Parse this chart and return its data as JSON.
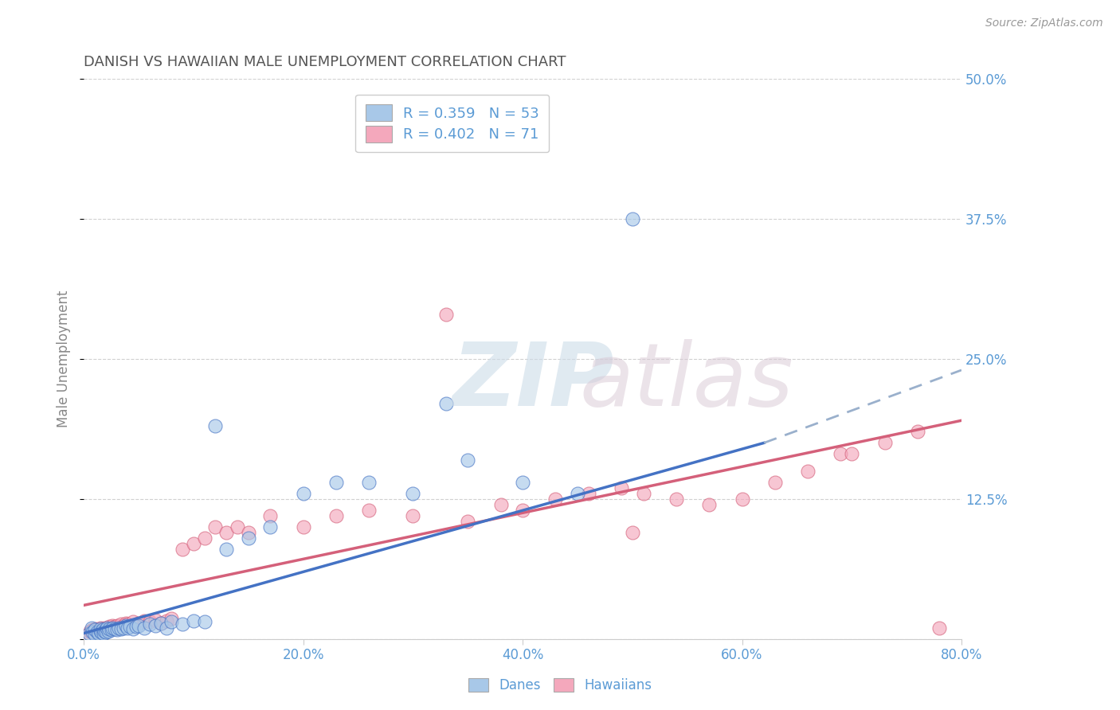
{
  "title": "DANISH VS HAWAIIAN MALE UNEMPLOYMENT CORRELATION CHART",
  "source": "Source: ZipAtlas.com",
  "ylabel": "Male Unemployment",
  "xlim": [
    0,
    0.8
  ],
  "ylim": [
    0,
    0.5
  ],
  "xticks": [
    0.0,
    0.2,
    0.4,
    0.6,
    0.8
  ],
  "xticklabels": [
    "0.0%",
    "20.0%",
    "40.0%",
    "60.0%",
    "80.0%"
  ],
  "yticks": [
    0.0,
    0.125,
    0.25,
    0.375,
    0.5
  ],
  "yticklabels": [
    "",
    "12.5%",
    "25.0%",
    "37.5%",
    "50.0%"
  ],
  "legend_r1": "R = 0.359   N = 53",
  "legend_r2": "R = 0.402   N = 71",
  "danes_color": "#a8c8e8",
  "hawaiians_color": "#f4a8bc",
  "danes_line_color": "#4472c4",
  "danes_line_color_ext": "#9ab0d0",
  "hawaiians_line_color": "#d4607a",
  "background_color": "#ffffff",
  "grid_color": "#cccccc",
  "tick_color": "#5b9bd5",
  "danes_trend_x0": 0.0,
  "danes_trend_y0": 0.005,
  "danes_trend_x1": 0.62,
  "danes_trend_y1": 0.175,
  "danes_trend_ext_x1": 0.8,
  "danes_trend_ext_y1": 0.24,
  "hawaiians_trend_x0": 0.0,
  "hawaiians_trend_y0": 0.03,
  "hawaiians_trend_x1": 0.8,
  "hawaiians_trend_y1": 0.195,
  "danes_x": [
    0.005,
    0.007,
    0.008,
    0.01,
    0.01,
    0.012,
    0.014,
    0.015,
    0.015,
    0.016,
    0.017,
    0.018,
    0.019,
    0.02,
    0.02,
    0.021,
    0.022,
    0.023,
    0.025,
    0.026,
    0.028,
    0.03,
    0.032,
    0.034,
    0.036,
    0.038,
    0.04,
    0.042,
    0.045,
    0.048,
    0.05,
    0.055,
    0.06,
    0.065,
    0.07,
    0.075,
    0.08,
    0.09,
    0.1,
    0.11,
    0.12,
    0.13,
    0.15,
    0.17,
    0.2,
    0.23,
    0.26,
    0.3,
    0.35,
    0.4,
    0.45,
    0.5,
    0.33
  ],
  "danes_y": [
    0.005,
    0.01,
    0.006,
    0.004,
    0.008,
    0.006,
    0.005,
    0.007,
    0.009,
    0.006,
    0.008,
    0.005,
    0.007,
    0.008,
    0.006,
    0.01,
    0.007,
    0.009,
    0.008,
    0.01,
    0.009,
    0.008,
    0.01,
    0.009,
    0.01,
    0.012,
    0.01,
    0.011,
    0.009,
    0.011,
    0.012,
    0.01,
    0.013,
    0.012,
    0.014,
    0.01,
    0.015,
    0.013,
    0.016,
    0.015,
    0.19,
    0.08,
    0.09,
    0.1,
    0.13,
    0.14,
    0.14,
    0.13,
    0.16,
    0.14,
    0.13,
    0.375,
    0.21
  ],
  "hawaiians_x": [
    0.005,
    0.006,
    0.007,
    0.008,
    0.009,
    0.01,
    0.01,
    0.011,
    0.012,
    0.013,
    0.014,
    0.015,
    0.015,
    0.016,
    0.017,
    0.018,
    0.019,
    0.02,
    0.021,
    0.022,
    0.023,
    0.024,
    0.025,
    0.026,
    0.027,
    0.028,
    0.03,
    0.032,
    0.034,
    0.036,
    0.038,
    0.04,
    0.045,
    0.05,
    0.055,
    0.06,
    0.065,
    0.07,
    0.075,
    0.08,
    0.09,
    0.1,
    0.11,
    0.12,
    0.13,
    0.14,
    0.15,
    0.17,
    0.2,
    0.23,
    0.26,
    0.3,
    0.35,
    0.38,
    0.4,
    0.43,
    0.46,
    0.49,
    0.51,
    0.54,
    0.57,
    0.6,
    0.63,
    0.66,
    0.69,
    0.7,
    0.73,
    0.76,
    0.33,
    0.5,
    0.78
  ],
  "hawaiians_y": [
    0.005,
    0.007,
    0.006,
    0.008,
    0.006,
    0.007,
    0.009,
    0.006,
    0.008,
    0.007,
    0.008,
    0.005,
    0.01,
    0.007,
    0.009,
    0.008,
    0.01,
    0.008,
    0.01,
    0.009,
    0.011,
    0.009,
    0.01,
    0.012,
    0.01,
    0.011,
    0.012,
    0.01,
    0.013,
    0.012,
    0.014,
    0.013,
    0.015,
    0.014,
    0.016,
    0.015,
    0.017,
    0.014,
    0.016,
    0.018,
    0.08,
    0.085,
    0.09,
    0.1,
    0.095,
    0.1,
    0.095,
    0.11,
    0.1,
    0.11,
    0.115,
    0.11,
    0.105,
    0.12,
    0.115,
    0.125,
    0.13,
    0.135,
    0.13,
    0.125,
    0.12,
    0.125,
    0.14,
    0.15,
    0.165,
    0.165,
    0.175,
    0.185,
    0.29,
    0.095,
    0.01
  ]
}
